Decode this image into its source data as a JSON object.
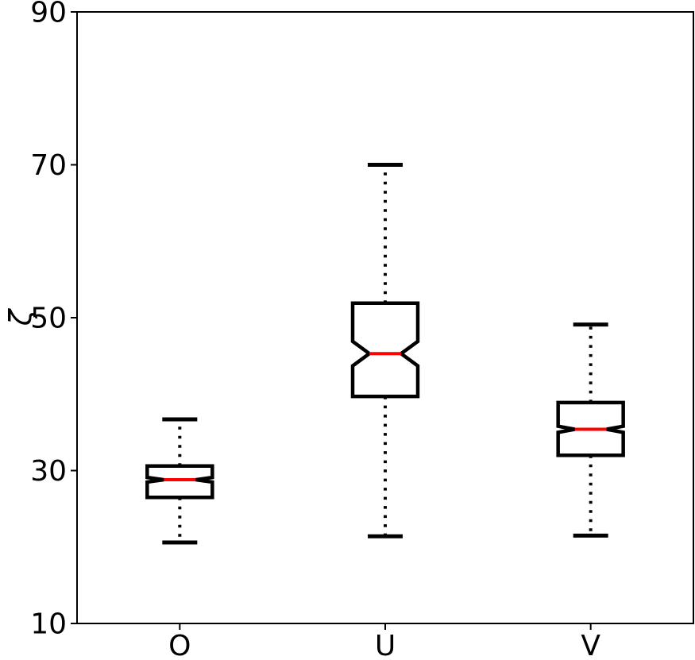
{
  "chart_data": {
    "type": "boxplot",
    "notched": true,
    "title": "",
    "xlabel": "",
    "ylabel": "ζ",
    "categories": [
      "O",
      "U",
      "V"
    ],
    "ylim": [
      10,
      90
    ],
    "yticks": [
      10,
      30,
      50,
      70,
      90
    ],
    "grid": false,
    "legend": null,
    "colors": {
      "box_edge": "#000000",
      "box_fill": "#ffffff",
      "median": "#ff0000",
      "whisker": "#000000",
      "cap": "#000000",
      "axis": "#000000",
      "text": "#000000",
      "background": "#ffffff"
    },
    "series": [
      {
        "label": "O",
        "whisker_low": 20.6,
        "q1": 26.5,
        "median": 28.8,
        "q3": 30.6,
        "whisker_high": 36.7,
        "notch_ci_low": 28.5,
        "notch_ci_high": 29.1
      },
      {
        "label": "U",
        "whisker_low": 21.4,
        "q1": 39.7,
        "median": 45.3,
        "q3": 51.9,
        "whisker_high": 70.0,
        "notch_ci_low": 43.7,
        "notch_ci_high": 46.9
      },
      {
        "label": "V",
        "whisker_low": 21.5,
        "q1": 32.0,
        "median": 35.4,
        "q3": 38.9,
        "whisker_high": 49.1,
        "notch_ci_low": 35.0,
        "notch_ci_high": 35.8
      }
    ]
  }
}
